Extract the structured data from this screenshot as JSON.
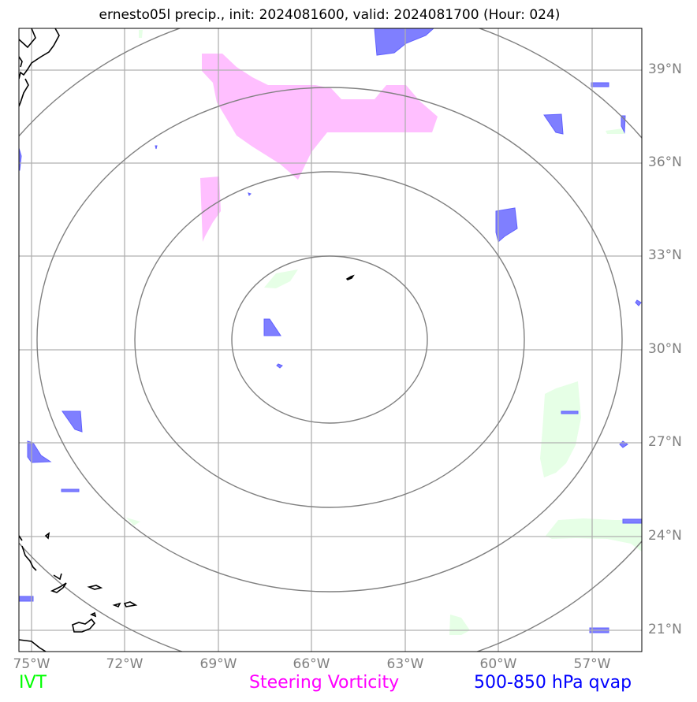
{
  "title": "ernesto05l precip., init: 2024081600, valid: 2024081700 (Hour: 024)",
  "axes": {
    "lon_labels": [
      "75°W",
      "72°W",
      "69°W",
      "66°W",
      "63°W",
      "60°W",
      "57°W"
    ],
    "lat_labels": [
      "39°N",
      "36°N",
      "33°N",
      "30°N",
      "27°N",
      "24°N",
      "21°N"
    ]
  },
  "legend": {
    "ivt": {
      "label": "IVT",
      "color": "#00ff00"
    },
    "vorticity": {
      "label": "Steering Vorticity",
      "color": "#ff00ff"
    },
    "qvap": {
      "label": "500-850 hPa qvap",
      "color": "#0000ff"
    }
  },
  "colors": {
    "ivt_fill": "#e6ffe6",
    "vorticity_fill": "#ffbfff",
    "qvap_fill": "#7f7fff",
    "range_rings": "#808080",
    "gridlines": "#b0b0b0",
    "coastline": "#000000"
  }
}
